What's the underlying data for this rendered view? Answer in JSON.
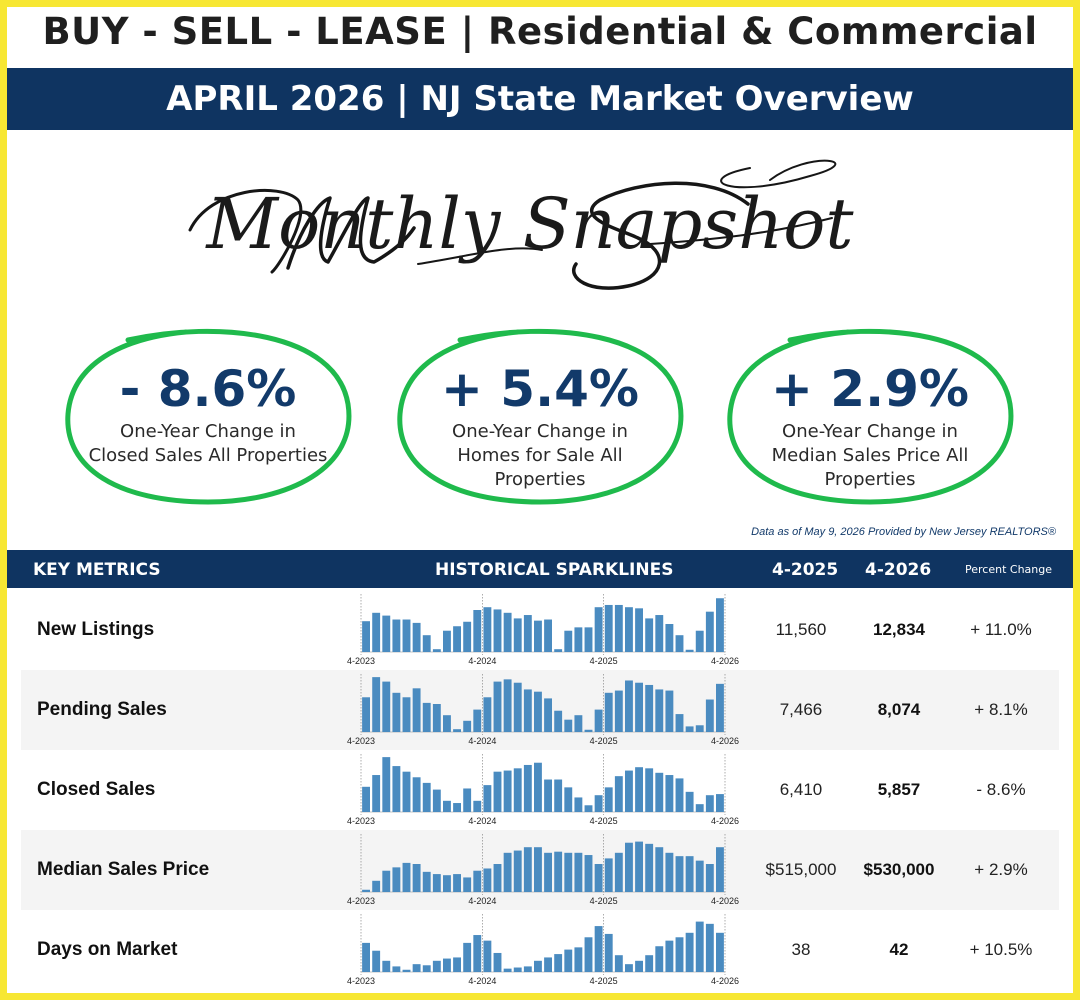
{
  "header": {
    "title": "BUY - SELL - LEASE | Residential & Commercial",
    "subtitle": "APRIL 2026 | NJ State Market Overview"
  },
  "script_heading": "Monthly Snapshot",
  "stats": [
    {
      "value": "- 8.6%",
      "description": "One-Year Change in Closed Sales All Properties"
    },
    {
      "value": "+ 5.4%",
      "description": "One-Year Change in Homes for Sale All Properties"
    },
    {
      "value": "+ 2.9%",
      "description": "One-Year Change in Median Sales Price All Properties"
    }
  ],
  "source_note": "Data as of May 9, 2026 Provided by New Jersey REALTORS®",
  "table": {
    "headers": {
      "metrics": "KEY METRICS",
      "sparklines": "HISTORICAL SPARKLINES",
      "prev": "4-2025",
      "curr": "4-2026",
      "pct": "Percent Change"
    },
    "rows": [
      {
        "name": "New Listings",
        "prev": "11,560",
        "curr": "12,834",
        "pct": "+ 11.0%"
      },
      {
        "name": "Pending Sales",
        "prev": "7,466",
        "curr": "8,074",
        "pct": "+ 8.1%"
      },
      {
        "name": "Closed Sales",
        "prev": "6,410",
        "curr": "5,857",
        "pct": "- 8.6%"
      },
      {
        "name": "Median Sales Price",
        "prev": "$515,000",
        "curr": "$530,000",
        "pct": "+ 2.9%"
      },
      {
        "name": "Days on Market",
        "prev": "38",
        "curr": "42",
        "pct": "+ 10.5%"
      }
    ]
  },
  "colors": {
    "navy": "#0f3461",
    "frame_yellow": "#f7e733",
    "ring_green": "#1fba4c",
    "bar_blue": "#4a8bc0"
  },
  "chart_data": {
    "type": "bar",
    "tick_labels": [
      "4-2023",
      "4-2024",
      "4-2025",
      "4-2026"
    ],
    "series": [
      {
        "name": "New Listings",
        "values": [
          0.55,
          0.7,
          0.65,
          0.58,
          0.58,
          0.52,
          0.3,
          0.05,
          0.38,
          0.46,
          0.54,
          0.75,
          0.8,
          0.76,
          0.7,
          0.6,
          0.66,
          0.56,
          0.58,
          0.05,
          0.38,
          0.44,
          0.44,
          0.8,
          0.84,
          0.84,
          0.8,
          0.78,
          0.6,
          0.66,
          0.5,
          0.3,
          0.04,
          0.38,
          0.72,
          0.96
        ]
      },
      {
        "name": "Pending Sales",
        "values": [
          0.62,
          0.98,
          0.9,
          0.7,
          0.62,
          0.78,
          0.52,
          0.5,
          0.3,
          0.05,
          0.2,
          0.4,
          0.62,
          0.9,
          0.94,
          0.88,
          0.76,
          0.72,
          0.6,
          0.38,
          0.22,
          0.3,
          0.04,
          0.4,
          0.7,
          0.74,
          0.92,
          0.88,
          0.84,
          0.76,
          0.74,
          0.32,
          0.1,
          0.12,
          0.58,
          0.86
        ]
      },
      {
        "name": "Closed Sales",
        "values": [
          0.45,
          0.66,
          0.98,
          0.82,
          0.72,
          0.62,
          0.52,
          0.4,
          0.2,
          0.16,
          0.42,
          0.2,
          0.48,
          0.72,
          0.74,
          0.78,
          0.84,
          0.88,
          0.58,
          0.58,
          0.44,
          0.26,
          0.12,
          0.3,
          0.44,
          0.64,
          0.74,
          0.8,
          0.78,
          0.7,
          0.66,
          0.6,
          0.36,
          0.14,
          0.3,
          0.32
        ]
      },
      {
        "name": "Median Sales Price",
        "values": [
          0.04,
          0.2,
          0.38,
          0.44,
          0.52,
          0.5,
          0.36,
          0.32,
          0.3,
          0.32,
          0.26,
          0.38,
          0.42,
          0.5,
          0.7,
          0.74,
          0.8,
          0.8,
          0.7,
          0.72,
          0.7,
          0.7,
          0.66,
          0.5,
          0.6,
          0.7,
          0.88,
          0.9,
          0.86,
          0.8,
          0.7,
          0.64,
          0.64,
          0.56,
          0.5,
          0.8
        ]
      },
      {
        "name": "Days on Market",
        "values": [
          0.52,
          0.38,
          0.2,
          0.1,
          0.04,
          0.14,
          0.12,
          0.2,
          0.24,
          0.26,
          0.52,
          0.66,
          0.56,
          0.34,
          0.06,
          0.08,
          0.1,
          0.2,
          0.26,
          0.32,
          0.4,
          0.44,
          0.62,
          0.82,
          0.68,
          0.3,
          0.14,
          0.2,
          0.3,
          0.46,
          0.56,
          0.62,
          0.7,
          0.9,
          0.86,
          0.7
        ]
      }
    ]
  }
}
